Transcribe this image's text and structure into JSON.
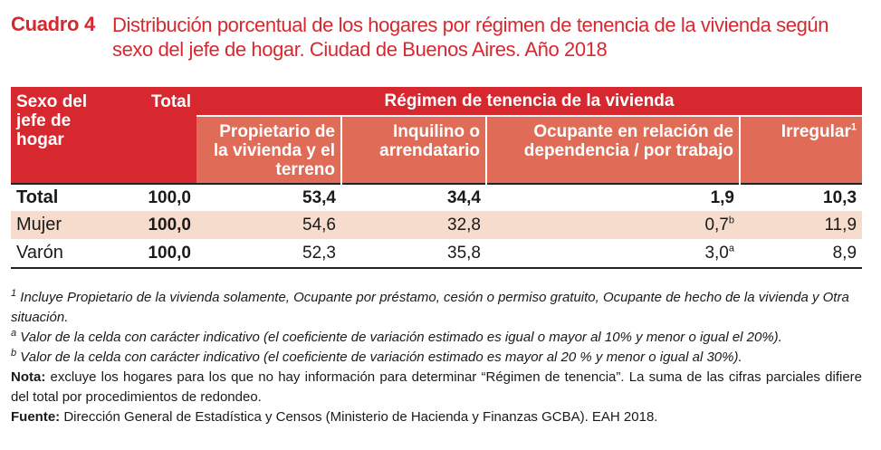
{
  "title": {
    "label": "Cuadro 4",
    "text": "Distribución porcentual de los hogares por régimen de tenencia de la vivienda según sexo del jefe de hogar. Ciudad de Buenos Aires. Año 2018"
  },
  "table": {
    "header": {
      "col_sexo": "Sexo del jefe de hogar",
      "col_total": "Total",
      "group": "Régimen de tenencia de la vivienda",
      "sub1": "Propietario de la vivienda y el terreno",
      "sub2": "Inquilino o arrendatario",
      "sub3": "Ocupante en relación de dependencia / por trabajo",
      "sub4": "Irregular",
      "sub4_mark": "1"
    },
    "rows": [
      {
        "label": "Total",
        "total": "100,0",
        "propietario": "53,4",
        "inquilino": "34,4",
        "ocupante": "1,9",
        "ocupante_mark": "",
        "irregular": "10,3"
      },
      {
        "label": "Mujer",
        "total": "100,0",
        "propietario": "54,6",
        "inquilino": "32,8",
        "ocupante": "0,7",
        "ocupante_mark": "b",
        "irregular": "11,9"
      },
      {
        "label": "Varón",
        "total": "100,0",
        "propietario": "52,3",
        "inquilino": "35,8",
        "ocupante": "3,0",
        "ocupante_mark": "a",
        "irregular": "8,9"
      }
    ]
  },
  "notes": {
    "n1_mark": "1",
    "n1": "Incluye Propietario de la vivienda solamente, Ocupante por préstamo, cesión o permiso gratuito, Ocupante de hecho de la vivienda y Otra situación.",
    "na_mark": "a",
    "na": "Valor de la celda con carácter indicativo (el coeficiente de variación estimado es igual o mayor al 10% y menor o igual el 20%).",
    "nb_mark": "b",
    "nb": "Valor de la celda con carácter indicativo (el coeficiente de variación estimado es mayor al 20 % y menor o igual al 30%).",
    "nota_label": "Nota:",
    "nota": "excluye los hogares para los que no hay información para determinar “Régimen de tenencia”. La suma de las cifras parciales difiere del total por procedimientos de redondeo.",
    "fuente_label": "Fuente:",
    "fuente": "Dirección General de Estadística y Censos (Ministerio de Hacienda y Finanzas GCBA). EAH 2018."
  }
}
